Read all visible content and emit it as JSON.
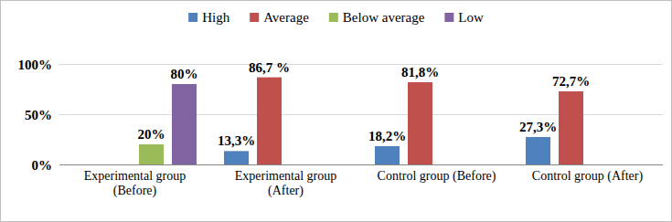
{
  "chart_data": {
    "type": "bar",
    "categories": [
      "Experimental group (Before)",
      "Experimental group (After)",
      "Control group (Before)",
      "Control group (After)"
    ],
    "series": [
      {
        "name": "High",
        "color": "#4f81bd",
        "values": [
          null,
          13.3,
          18.2,
          27.3
        ],
        "value_labels": [
          null,
          "13,3%",
          "18,2%",
          "27,3%"
        ]
      },
      {
        "name": "Average",
        "color": "#c0504d",
        "values": [
          null,
          86.7,
          81.8,
          72.7
        ],
        "value_labels": [
          null,
          "86,7 %",
          "81,8%",
          "72,7%"
        ]
      },
      {
        "name": "Below average",
        "color": "#9bbb59",
        "values": [
          20,
          null,
          null,
          null
        ],
        "value_labels": [
          "20%",
          null,
          null,
          null
        ]
      },
      {
        "name": "Low",
        "color": "#8064a2",
        "values": [
          80,
          null,
          null,
          null
        ],
        "value_labels": [
          "80%",
          null,
          null,
          null
        ]
      }
    ],
    "ylim": [
      0,
      100
    ],
    "yticks": [
      {
        "value": 0,
        "label": "0%"
      },
      {
        "value": 50,
        "label": "50%"
      },
      {
        "value": 100,
        "label": "100%"
      }
    ],
    "grid": true,
    "legend": "top",
    "data_labels": true
  }
}
